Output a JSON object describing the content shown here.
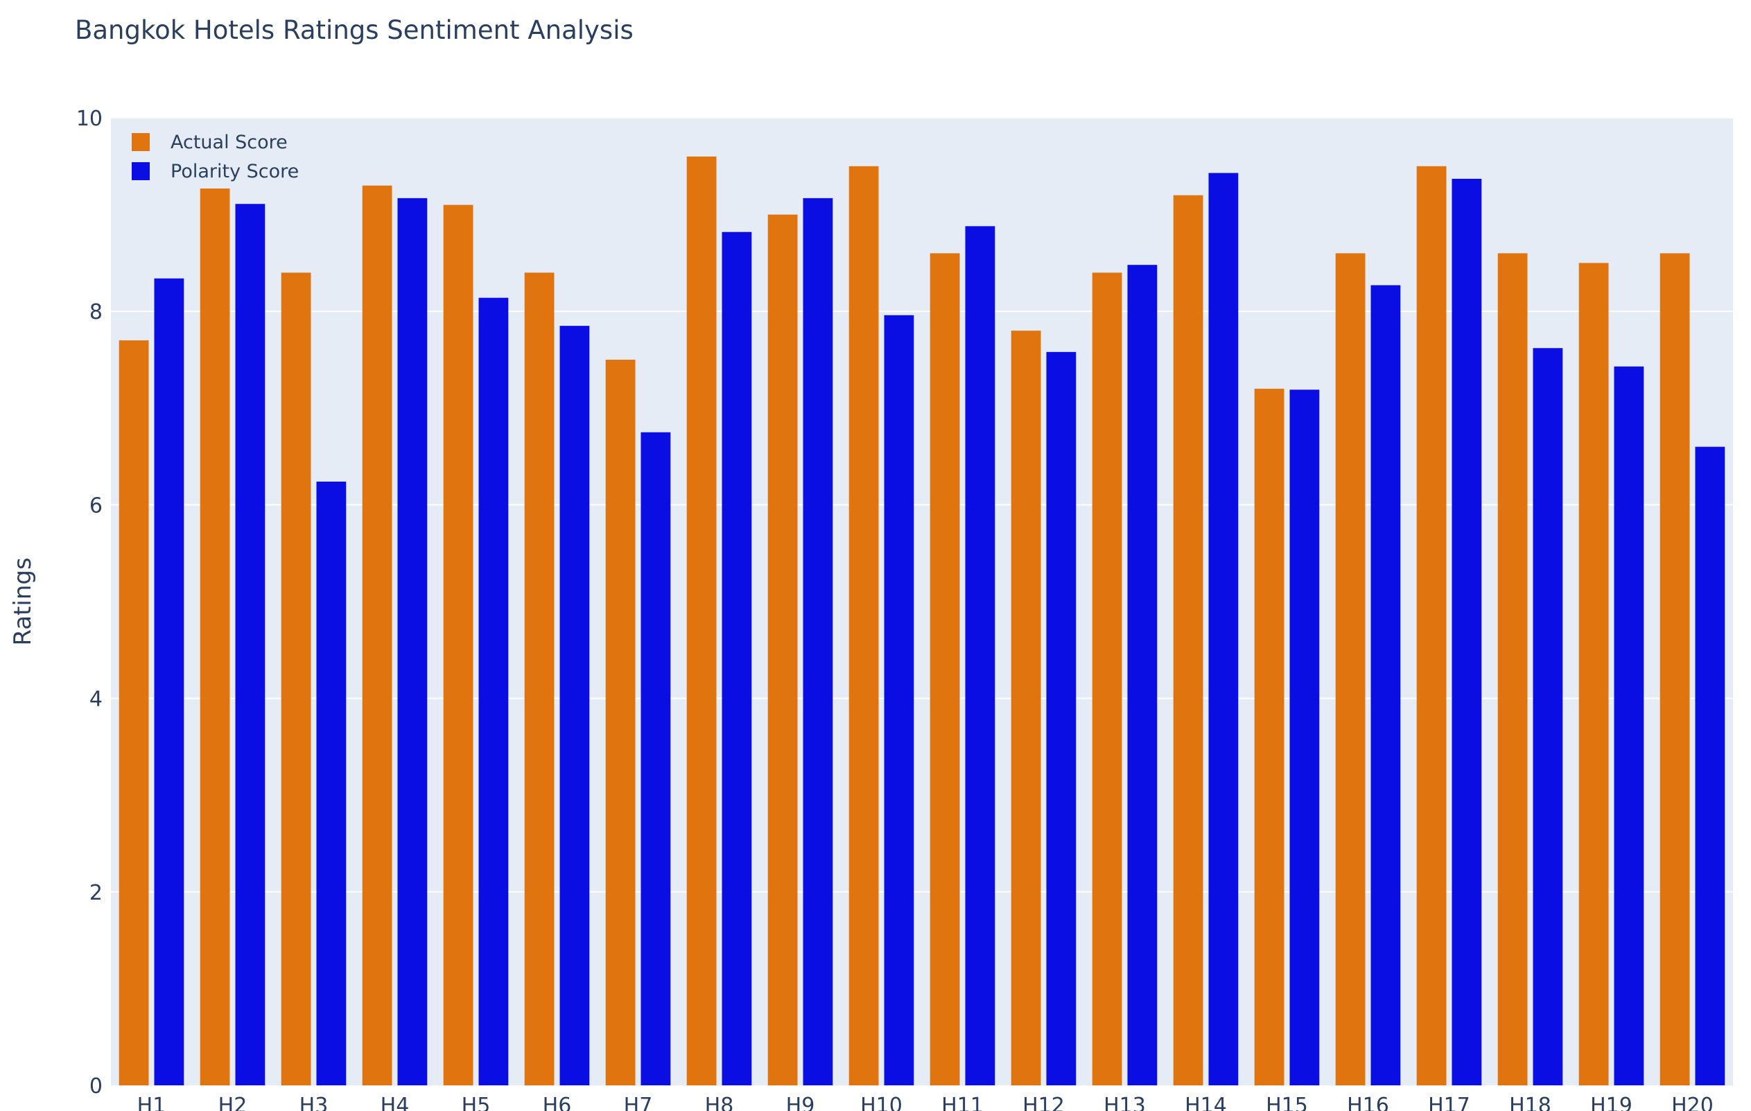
{
  "chart_data": {
    "type": "bar",
    "title": "Bangkok Hotels Ratings Sentiment Analysis",
    "xlabel": "",
    "ylabel": "Ratings",
    "ylim": [
      0,
      10
    ],
    "yticks": [
      0,
      2,
      4,
      6,
      8,
      10
    ],
    "grid": true,
    "legend_position": "top-left",
    "categories": [
      "H1",
      "H2",
      "H3",
      "H4",
      "H5",
      "H6",
      "H7",
      "H8",
      "H9",
      "H10",
      "H11",
      "H12",
      "H13",
      "H14",
      "H15",
      "H16",
      "H17",
      "H18",
      "H19",
      "H20"
    ],
    "series": [
      {
        "name": "Actual Score",
        "color": "#e07510",
        "values": [
          7.7,
          9.4,
          8.4,
          9.3,
          9.1,
          8.4,
          7.5,
          9.6,
          9.0,
          9.5,
          8.6,
          7.8,
          8.4,
          9.2,
          7.2,
          8.6,
          9.5,
          8.6,
          8.5,
          8.6
        ]
      },
      {
        "name": "Polarity Score",
        "color": "#0b0ee3",
        "values": [
          8.34,
          9.11,
          6.24,
          9.17,
          8.14,
          7.85,
          6.75,
          8.82,
          9.17,
          7.96,
          8.88,
          7.58,
          8.48,
          9.43,
          7.19,
          8.27,
          9.37,
          7.62,
          7.43,
          6.6
        ]
      }
    ]
  },
  "style": {
    "plot_background": "#e5ecf6",
    "grid_color": "#ffffff",
    "text_color": "#2a3f5f"
  }
}
